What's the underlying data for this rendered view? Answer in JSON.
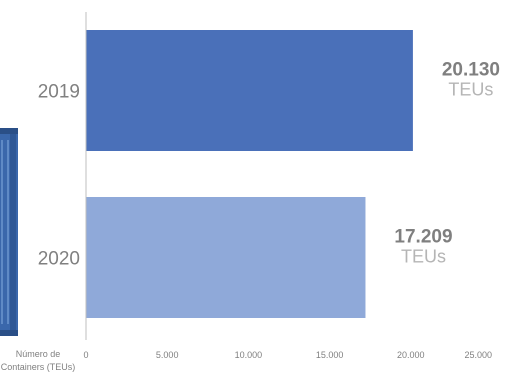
{
  "chart_data": {
    "type": "bar",
    "orientation": "horizontal",
    "categories": [
      "2019",
      "2020"
    ],
    "values": [
      20130,
      17209
    ],
    "value_labels": [
      "20.130",
      "17.209"
    ],
    "value_unit": "TEUs",
    "xlabel": "Número de Containers (TEUs)",
    "xlabel_lines": [
      "Número de",
      "Containers (TEUs)"
    ],
    "xlim": [
      0,
      25000
    ],
    "xticks": [
      0,
      5000,
      10000,
      15000,
      20000,
      25000
    ],
    "xtick_labels": [
      "0",
      "5.000",
      "10.000",
      "15.000",
      "20.000",
      "25.000"
    ],
    "grid": false,
    "colors": {
      "bar_2019": "#4a70b9",
      "bar_2020": "#8fa9d9",
      "text": "#808080",
      "axis": "#bfbfbf",
      "container": "#3f6db0"
    },
    "decoration": "blue-shipping-container-icon"
  }
}
